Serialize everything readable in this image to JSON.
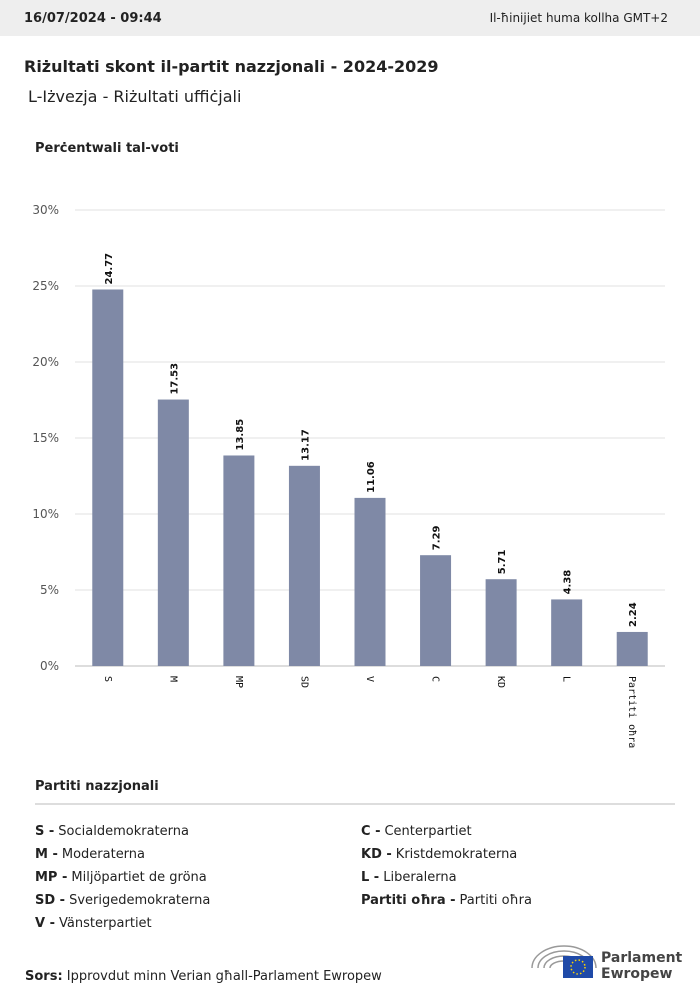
{
  "header": {
    "date": "16/07/2024 - 09:44",
    "timezone": "Il-ħinijiet huma kollha GMT+2"
  },
  "title": "Riżultati skont il-partit nazzjonali - 2024-2029",
  "subtitle": "L-Iżvezja - Riżultati uffiċjali",
  "chart_data": {
    "type": "bar",
    "y_label": "Perċentwali tal-voti",
    "categories": [
      "S",
      "M",
      "MP",
      "SD",
      "V",
      "C",
      "KD",
      "L",
      "Partiti oħra"
    ],
    "values": [
      24.77,
      17.53,
      13.85,
      13.17,
      11.06,
      7.29,
      5.71,
      4.38,
      2.24
    ],
    "color": "#7f89a6",
    "ylim": [
      0,
      30
    ],
    "yticks": [
      {
        "value": 0,
        "label": "0%"
      },
      {
        "value": 5,
        "label": "5%"
      },
      {
        "value": 10,
        "label": "10%"
      },
      {
        "value": 15,
        "label": "15%"
      },
      {
        "value": 20,
        "label": "20%"
      },
      {
        "value": 25,
        "label": "25%"
      },
      {
        "value": 30,
        "label": "30%"
      }
    ],
    "grid": true
  },
  "legend": {
    "title": "Partiti nazzjonali",
    "items": [
      {
        "key": "S -",
        "name": "Socialdemokraterna"
      },
      {
        "key": "M -",
        "name": "Moderaterna"
      },
      {
        "key": "MP -",
        "name": "Miljöpartiet de gröna"
      },
      {
        "key": "SD -",
        "name": "Sverigedemokraterna"
      },
      {
        "key": "V -",
        "name": "Vänsterpartiet"
      },
      {
        "key": "C -",
        "name": "Centerpartiet"
      },
      {
        "key": "KD -",
        "name": "Kristdemokraterna"
      },
      {
        "key": "L -",
        "name": "Liberalerna"
      },
      {
        "key": "Partiti oħra -",
        "name": "Partiti oħra"
      }
    ]
  },
  "source": {
    "label": "Sors:",
    "text": "Ipprovdut minn Verian għall-Parlament Ewropew"
  },
  "logo": {
    "line1": "Parlament",
    "line2": "Ewropew"
  }
}
